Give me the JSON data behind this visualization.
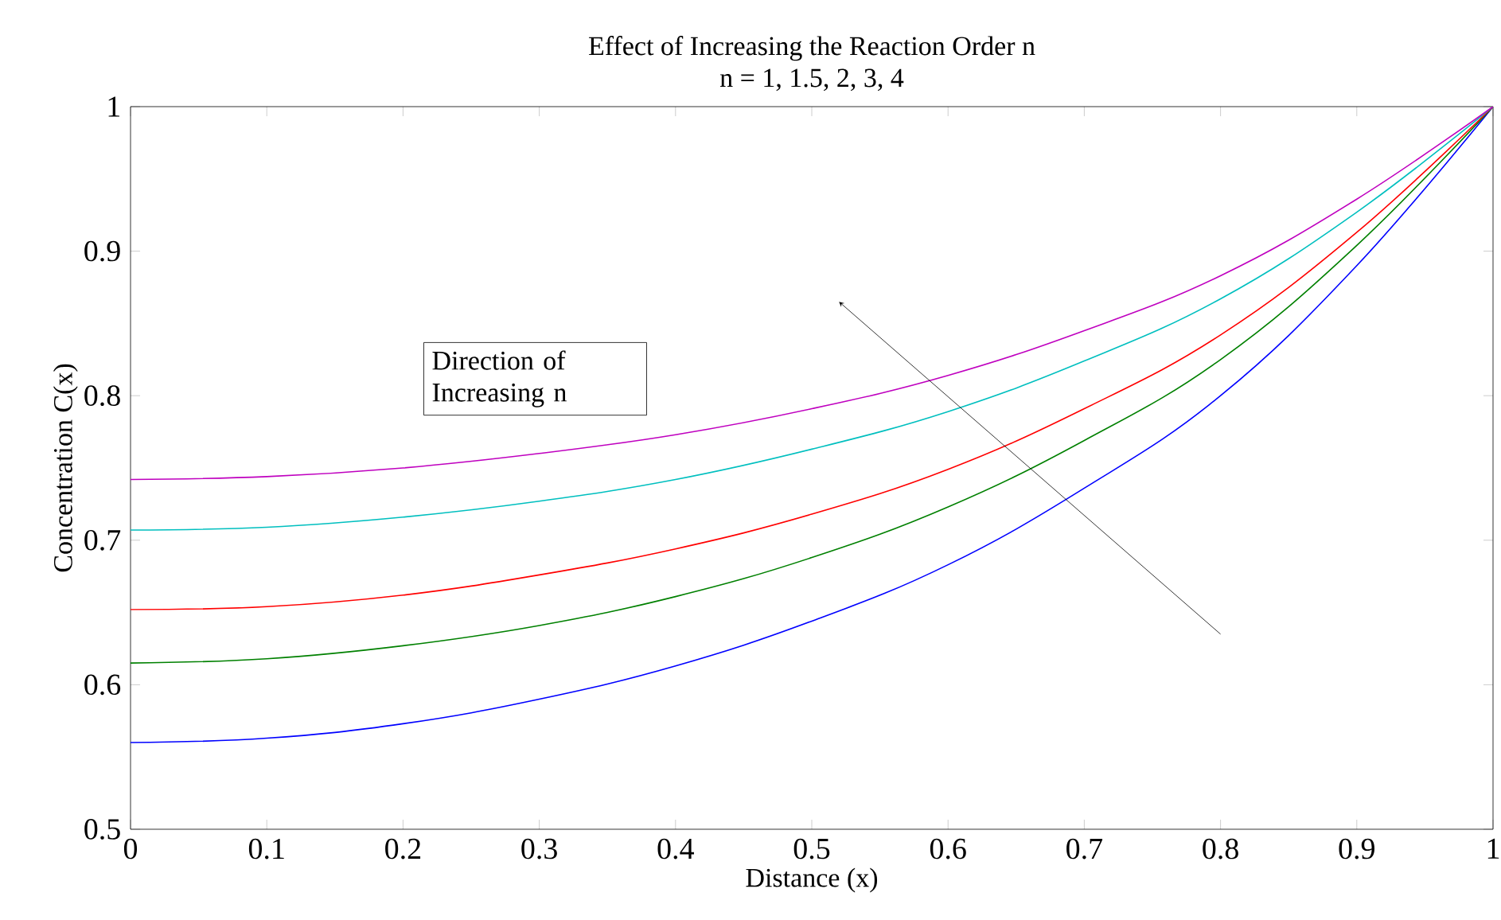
{
  "chart_data": {
    "type": "line",
    "title": "Effect of Increasing the Reaction Order n",
    "subtitle": "n = 1, 1.5, 2, 3, 4",
    "xlabel": "Distance (x)",
    "ylabel": "Concentration C(x)",
    "x": [
      0,
      0.1,
      0.2,
      0.3,
      0.4,
      0.5,
      0.6,
      0.7,
      0.8,
      0.9,
      1
    ],
    "series": [
      {
        "color": "#0000ff",
        "values": [
          0.56,
          0.563,
          0.573,
          0.59,
          0.613,
          0.644,
          0.683,
          0.736,
          0.8,
          0.89,
          1
        ]
      },
      {
        "color": "#008000",
        "values": [
          0.615,
          0.618,
          0.627,
          0.641,
          0.661,
          0.688,
          0.723,
          0.769,
          0.825,
          0.904,
          1
        ]
      },
      {
        "color": "#ff0000",
        "values": [
          0.652,
          0.654,
          0.662,
          0.676,
          0.694,
          0.718,
          0.749,
          0.791,
          0.842,
          0.913,
          1
        ]
      },
      {
        "color": "#00bfbf",
        "values": [
          0.707,
          0.709,
          0.716,
          0.727,
          0.742,
          0.763,
          0.789,
          0.824,
          0.867,
          0.927,
          1
        ]
      },
      {
        "color": "#bf00bf",
        "values": [
          0.742,
          0.744,
          0.75,
          0.76,
          0.773,
          0.791,
          0.814,
          0.845,
          0.883,
          0.936,
          1
        ]
      }
    ],
    "xlim": [
      0,
      1
    ],
    "ylim": [
      0.5,
      1
    ],
    "xticks": [
      0,
      0.1,
      0.2,
      0.3,
      0.4,
      0.5,
      0.6,
      0.7,
      0.8,
      0.9,
      1
    ],
    "yticks": [
      0.5,
      0.6,
      0.7,
      0.8,
      0.9,
      1
    ],
    "annotations": [
      "Direction of Increasing n"
    ],
    "grid": false,
    "marker": "none",
    "line_style": "solid"
  }
}
